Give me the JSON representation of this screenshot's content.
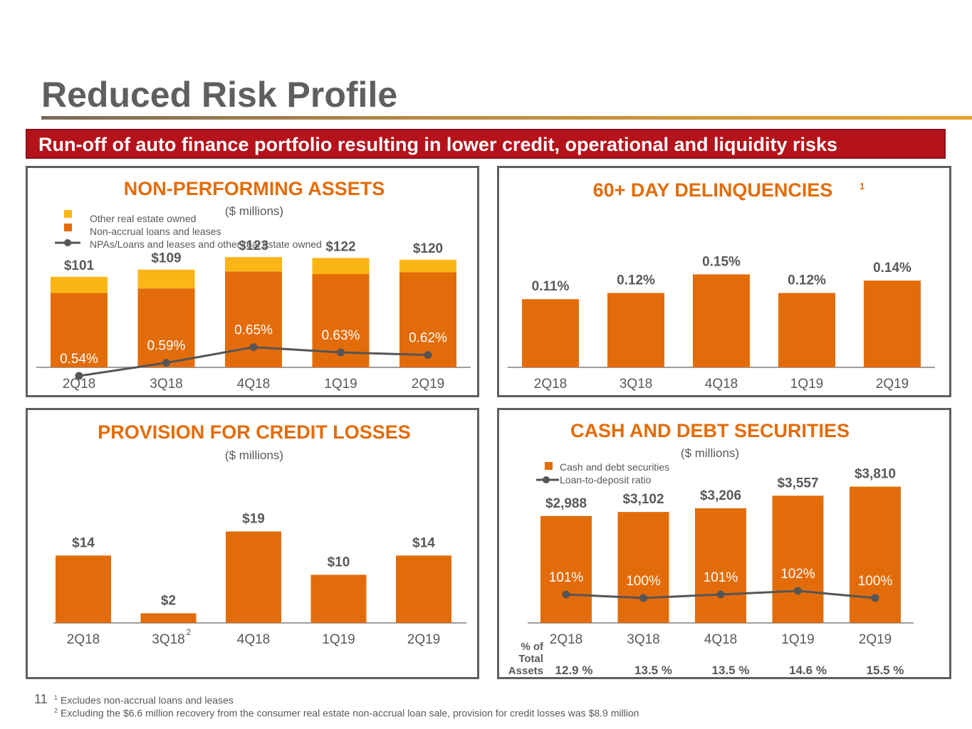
{
  "page": {
    "title": "Reduced Risk Profile",
    "banner": "Run-off of auto finance portfolio resulting in lower credit, operational and liquidity risks",
    "page_number": "11",
    "footnotes": [
      {
        "mark": "1",
        "text": "Excludes non-accrual loans and leases"
      },
      {
        "mark": "2",
        "text": "Excluding the $6.6 million recovery from the consumer real estate non-accrual loan sale, provision for credit losses was $8.9 million"
      }
    ]
  },
  "colors": {
    "orange": "#e36c0a",
    "yellow": "#fbb616",
    "line": "#555555",
    "banner": "#b5121b"
  },
  "chart_data": [
    {
      "id": "npa",
      "type": "bar",
      "title": "NON-PERFORMING ASSETS",
      "subtitle": "($ millions)",
      "categories": [
        "2Q18",
        "3Q18",
        "4Q18",
        "1Q19",
        "2Q19"
      ],
      "legend": [
        "Other real estate owned",
        "Non-accrual loans and leases",
        "NPAs/Loans and leases and other real estate owned"
      ],
      "series": [
        {
          "name": "Non-accrual loans and leases",
          "values": [
            83,
            88,
            107,
            104,
            106
          ]
        },
        {
          "name": "Other real estate owned",
          "values": [
            18,
            21,
            16,
            18,
            14
          ]
        }
      ],
      "totals": [
        101,
        109,
        123,
        122,
        120
      ],
      "total_labels": [
        "$101",
        "$109",
        "$123",
        "$122",
        "$120"
      ],
      "line": {
        "name": "NPAs/Loans and leases and other real estate owned",
        "values": [
          0.54,
          0.59,
          0.65,
          0.63,
          0.62
        ],
        "labels": [
          "0.54%",
          "0.59%",
          "0.65%",
          "0.63%",
          "0.62%"
        ],
        "ylim": [
          0.3,
          1.2
        ]
      },
      "ylim": [
        0,
        135
      ]
    },
    {
      "id": "delinq",
      "type": "bar",
      "title": "60+ DAY DELINQUENCIES",
      "title_sup": "1",
      "categories": [
        "2Q18",
        "3Q18",
        "4Q18",
        "1Q19",
        "2Q19"
      ],
      "values": [
        0.11,
        0.12,
        0.15,
        0.12,
        0.14
      ],
      "labels": [
        "0.11%",
        "0.12%",
        "0.15%",
        "0.12%",
        "0.14%"
      ],
      "ylim": [
        0,
        0.17
      ]
    },
    {
      "id": "provision",
      "type": "bar",
      "title": "PROVISION FOR CREDIT LOSSES",
      "subtitle": "($ millions)",
      "categories": [
        "2Q18",
        "3Q18",
        "4Q18",
        "1Q19",
        "2Q19"
      ],
      "category_sup": [
        "",
        "2",
        "",
        "",
        ""
      ],
      "values": [
        14,
        2,
        19,
        10,
        14
      ],
      "labels": [
        "$14",
        "$2",
        "$19",
        "$10",
        "$14"
      ],
      "ylim": [
        0,
        25
      ]
    },
    {
      "id": "cash",
      "type": "bar",
      "title": "CASH AND DEBT SECURITIES",
      "subtitle": "($ millions)",
      "categories": [
        "2Q18",
        "3Q18",
        "4Q18",
        "1Q19",
        "2Q19"
      ],
      "legend": [
        "Cash and debt securities",
        "Loan-to-deposit ratio"
      ],
      "values": [
        2988,
        3102,
        3206,
        3557,
        3810
      ],
      "labels": [
        "$2,988",
        "$3,102",
        "$3,206",
        "$3,557",
        "$3,810"
      ],
      "line": {
        "name": "Loan-to-deposit ratio",
        "values": [
          101,
          100,
          101,
          102,
          100
        ],
        "labels": [
          "101%",
          "100%",
          "101%",
          "102%",
          "100%"
        ],
        "ylim": [
          90,
          140
        ]
      },
      "ylim": [
        0,
        4100
      ],
      "pct_of_total_assets": {
        "label": "% of Total Assets",
        "values": [
          "12.9 %",
          "13.5 %",
          "13.5 %",
          "14.6 %",
          "15.5 %"
        ]
      }
    }
  ]
}
